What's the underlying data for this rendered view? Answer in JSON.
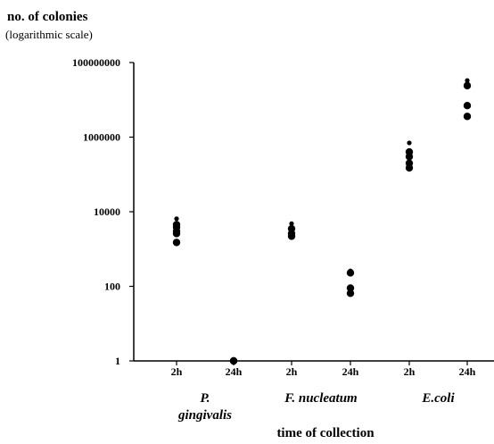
{
  "chart_data": {
    "type": "scatter",
    "title": "",
    "ylabel": "no. of colonies",
    "ylabel_note": "(logarithmic scale)",
    "xlabel": "time of collection",
    "yscale": "log",
    "ylim": [
      1,
      100000000
    ],
    "y_ticks": [
      {
        "value": 1,
        "label": "1"
      },
      {
        "value": 100,
        "label": "100"
      },
      {
        "value": 10000,
        "label": "10000"
      },
      {
        "value": 1000000,
        "label": "1000000"
      },
      {
        "value": 100000000,
        "label": "100000000"
      }
    ],
    "categories": [
      "2h",
      "24h",
      "2h",
      "24h",
      "2h",
      "24h"
    ],
    "groups": [
      {
        "label_lines": [
          "P.",
          "gingivalis"
        ],
        "categories": [
          0,
          1
        ]
      },
      {
        "label_lines": [
          "F. nucleatum"
        ],
        "categories": [
          2,
          3
        ]
      },
      {
        "label_lines": [
          "E.coli"
        ],
        "categories": [
          4,
          5
        ]
      }
    ],
    "points": [
      {
        "category": 0,
        "values": [
          6500,
          4500,
          3800,
          3000,
          2600,
          1500
        ]
      },
      {
        "category": 1,
        "values": [
          1,
          1
        ]
      },
      {
        "category": 2,
        "values": [
          4800,
          3500,
          2600,
          2200
        ]
      },
      {
        "category": 3,
        "values": [
          260,
          230,
          90,
          65
        ]
      },
      {
        "category": 4,
        "values": [
          700000,
          400000,
          300000,
          200000,
          150000
        ]
      },
      {
        "category": 5,
        "values": [
          33000000,
          24000000,
          7000000,
          3600000
        ]
      }
    ],
    "grid": false,
    "legend": "none"
  }
}
